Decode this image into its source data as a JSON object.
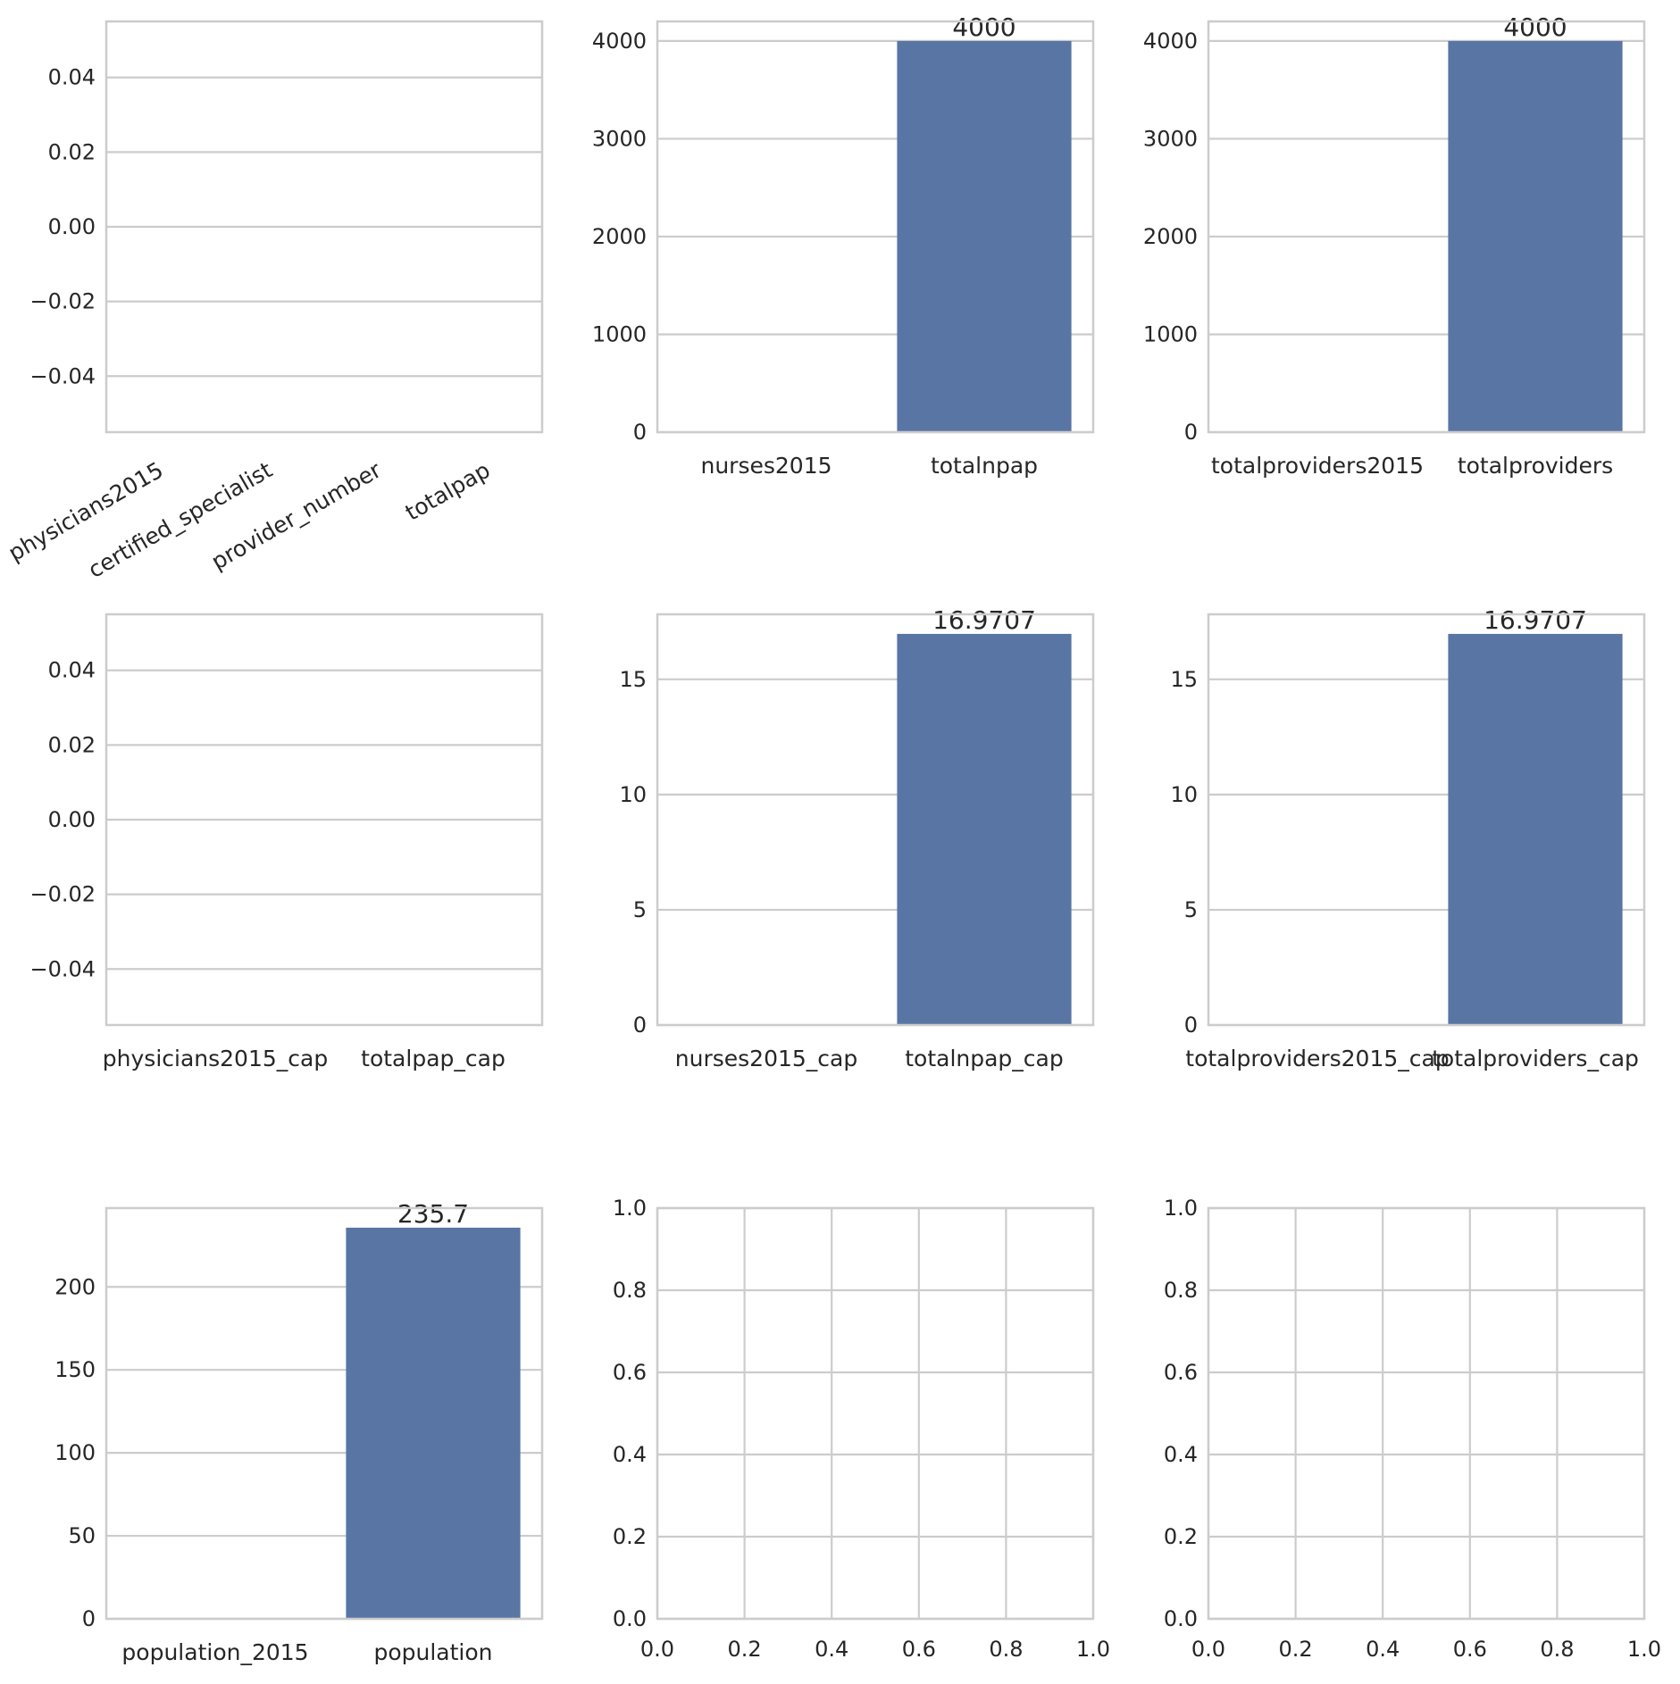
{
  "chart_data": [
    {
      "type": "bar",
      "categories": [
        "physicians2015",
        "certified_specialist",
        "provider_number",
        "totalpap"
      ],
      "values": [
        0,
        0,
        0,
        0
      ],
      "bar_labels": [],
      "ylim": [
        -0.055,
        0.055
      ],
      "yticks": [
        0.04,
        0.02,
        0.0,
        -0.02,
        -0.04
      ],
      "ytick_labels": [
        "0.04",
        "0.02",
        "0.00",
        "−0.02",
        "−0.04"
      ],
      "xtick_rotation": 30,
      "grid": "horizontal"
    },
    {
      "type": "bar",
      "categories": [
        "nurses2015",
        "totalnpap"
      ],
      "values": [
        0,
        4000
      ],
      "bar_labels": [
        "",
        "4000"
      ],
      "ylim": [
        0,
        4200
      ],
      "yticks": [
        0,
        1000,
        2000,
        3000,
        4000
      ],
      "ytick_labels": [
        "0",
        "1000",
        "2000",
        "3000",
        "4000"
      ],
      "grid": "horizontal"
    },
    {
      "type": "bar",
      "categories": [
        "totalproviders2015",
        "totalproviders"
      ],
      "values": [
        0,
        4000
      ],
      "bar_labels": [
        "",
        "4000"
      ],
      "ylim": [
        0,
        4200
      ],
      "yticks": [
        0,
        1000,
        2000,
        3000,
        4000
      ],
      "ytick_labels": [
        "0",
        "1000",
        "2000",
        "3000",
        "4000"
      ],
      "grid": "horizontal"
    },
    {
      "type": "bar",
      "categories": [
        "physicians2015_cap",
        "totalpap_cap"
      ],
      "values": [
        0,
        0
      ],
      "bar_labels": [],
      "ylim": [
        -0.055,
        0.055
      ],
      "yticks": [
        0.04,
        0.02,
        0.0,
        -0.02,
        -0.04
      ],
      "ytick_labels": [
        "0.04",
        "0.02",
        "0.00",
        "−0.02",
        "−0.04"
      ],
      "grid": "horizontal"
    },
    {
      "type": "bar",
      "categories": [
        "nurses2015_cap",
        "totalnpap_cap"
      ],
      "values": [
        0,
        16.9707
      ],
      "bar_labels": [
        "",
        "16.9707"
      ],
      "ylim": [
        0,
        17.82
      ],
      "yticks": [
        0,
        5,
        10,
        15
      ],
      "ytick_labels": [
        "0",
        "5",
        "10",
        "15"
      ],
      "grid": "horizontal"
    },
    {
      "type": "bar",
      "categories": [
        "totalproviders2015_cap",
        "totalproviders_cap"
      ],
      "values": [
        0,
        16.9707
      ],
      "bar_labels": [
        "",
        "16.9707"
      ],
      "ylim": [
        0,
        17.82
      ],
      "yticks": [
        0,
        5,
        10,
        15
      ],
      "ytick_labels": [
        "0",
        "5",
        "10",
        "15"
      ],
      "grid": "horizontal"
    },
    {
      "type": "bar",
      "categories": [
        "population_2015",
        "population"
      ],
      "values": [
        0,
        235.7
      ],
      "bar_labels": [
        "",
        "235.7"
      ],
      "ylim": [
        0,
        247.5
      ],
      "yticks": [
        0,
        50,
        100,
        150,
        200
      ],
      "ytick_labels": [
        "0",
        "50",
        "100",
        "150",
        "200"
      ],
      "grid": "horizontal"
    },
    {
      "type": "empty",
      "xlim": [
        0,
        1
      ],
      "ylim": [
        0,
        1
      ],
      "xticks": [
        0.0,
        0.2,
        0.4,
        0.6,
        0.8,
        1.0
      ],
      "xtick_labels": [
        "0.0",
        "0.2",
        "0.4",
        "0.6",
        "0.8",
        "1.0"
      ],
      "yticks": [
        0.0,
        0.2,
        0.4,
        0.6,
        0.8,
        1.0
      ],
      "ytick_labels": [
        "0.0",
        "0.2",
        "0.4",
        "0.6",
        "0.8",
        "1.0"
      ],
      "grid": "both"
    },
    {
      "type": "empty",
      "xlim": [
        0,
        1
      ],
      "ylim": [
        0,
        1
      ],
      "xticks": [
        0.0,
        0.2,
        0.4,
        0.6,
        0.8,
        1.0
      ],
      "xtick_labels": [
        "0.0",
        "0.2",
        "0.4",
        "0.6",
        "0.8",
        "1.0"
      ],
      "yticks": [
        0.0,
        0.2,
        0.4,
        0.6,
        0.8,
        1.0
      ],
      "ytick_labels": [
        "0.0",
        "0.2",
        "0.4",
        "0.6",
        "0.8",
        "1.0"
      ],
      "grid": "both"
    }
  ],
  "colors": {
    "bar": "#5975a4",
    "grid": "#cccccc",
    "spine": "#cccccc",
    "text": "#262626",
    "background": "#ffffff"
  }
}
